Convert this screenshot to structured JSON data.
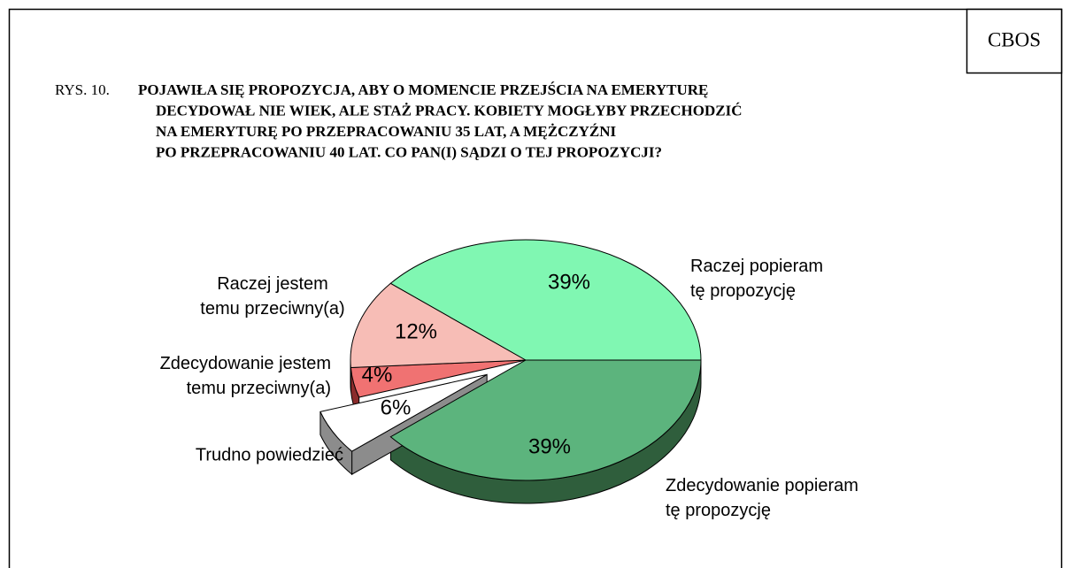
{
  "header": "CBOS",
  "chart_data": {
    "type": "pie",
    "figure_label": "RYS. 10.",
    "title": "POJAWIŁA SIĘ PROPOZYCJA, ABY O MOMENCIE PRZEJŚCIA NA EMERYTURĘ\nDECYDOWAŁ NIE WIEK, ALE STAŻ PRACY. KOBIETY MOGŁYBY PRZECHODZIĆ\nNA EMERYTURĘ PO PRZEPRACOWANIU 35 LAT, A MĘŻCZYŹNI\nPO PRZEPRACOWANIU 40 LAT. CO PAN(I) SĄDZI O TEJ PROPOZYCJI?",
    "categories": [
      "Zdecydowanie popieram\ntę propozycję",
      "Trudno powiedzieć",
      "Zdecydowanie jestem\ntemu przeciwny(a)",
      "Raczej jestem\ntemu przeciwny(a)",
      "Raczej popieram\ntę propozycję"
    ],
    "values": [
      39,
      6,
      4,
      12,
      39
    ],
    "value_labels": [
      "39%",
      "6%",
      "4%",
      "12%",
      "39%"
    ],
    "colors": [
      "#5cb47d",
      "#ffffff",
      "#f07272",
      "#f7bdb6",
      "#80f7b2"
    ],
    "side_colors": [
      "#2f5e3c",
      "#8c8c8c",
      "#8a2c2c",
      "#a07a76",
      "#3c8a5c"
    ],
    "exploded": [
      false,
      true,
      false,
      false,
      false
    ]
  }
}
